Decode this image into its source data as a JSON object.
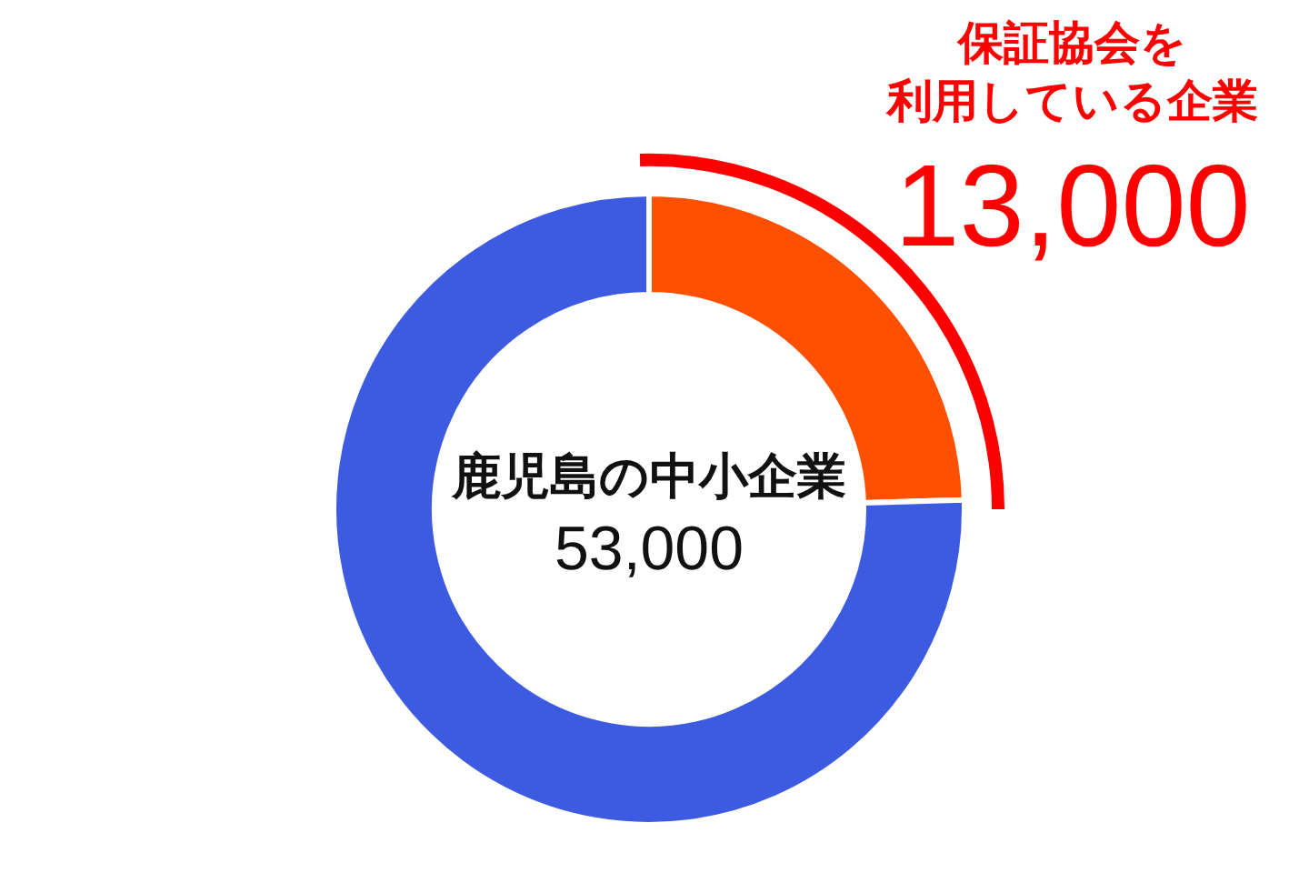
{
  "chart_data": {
    "type": "donut",
    "categories": [
      "保証協会を利用している企業",
      null
    ],
    "values": [
      13000,
      40000
    ],
    "colors": [
      "#ff5000",
      "#3d5be0"
    ],
    "value_labels": [
      "13,000",
      null
    ],
    "annotations": [
      "鹿児島の中小企業",
      "53,000"
    ],
    "legend": false
  }
}
